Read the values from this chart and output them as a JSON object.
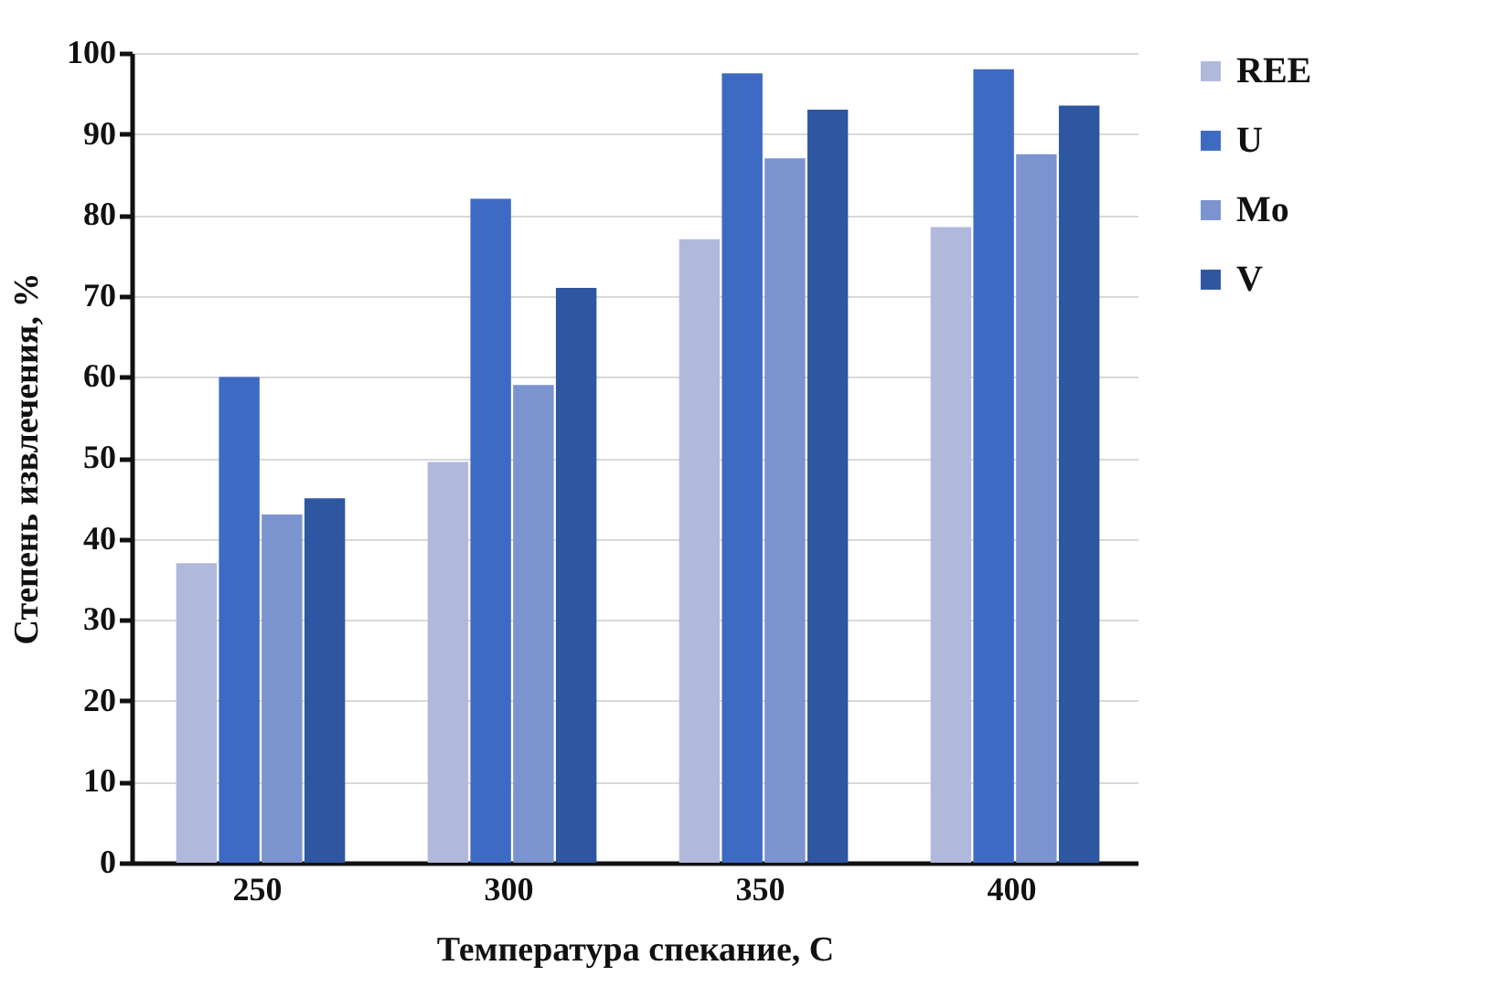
{
  "chart_data": {
    "type": "bar",
    "xlabel": "Температура спекание, С",
    "ylabel": "Степень извлечения, %",
    "categories": [
      "250",
      "300",
      "350",
      "400"
    ],
    "series": [
      {
        "name": "REE",
        "color": "#b0b9dc",
        "values": [
          37,
          49.5,
          77,
          78.5
        ]
      },
      {
        "name": "U",
        "color": "#3d6bc4",
        "values": [
          60,
          82,
          97.5,
          98
        ]
      },
      {
        "name": "Mo",
        "color": "#7b93cf",
        "values": [
          43,
          59,
          87,
          87.5
        ]
      },
      {
        "name": "V",
        "color": "#2f56a0",
        "values": [
          45,
          71,
          93,
          93.5
        ]
      }
    ],
    "ylim": [
      0,
      100
    ],
    "yticks": [
      0,
      10,
      20,
      30,
      40,
      50,
      60,
      70,
      80,
      90,
      100
    ],
    "grid": "y",
    "legend": "right"
  }
}
